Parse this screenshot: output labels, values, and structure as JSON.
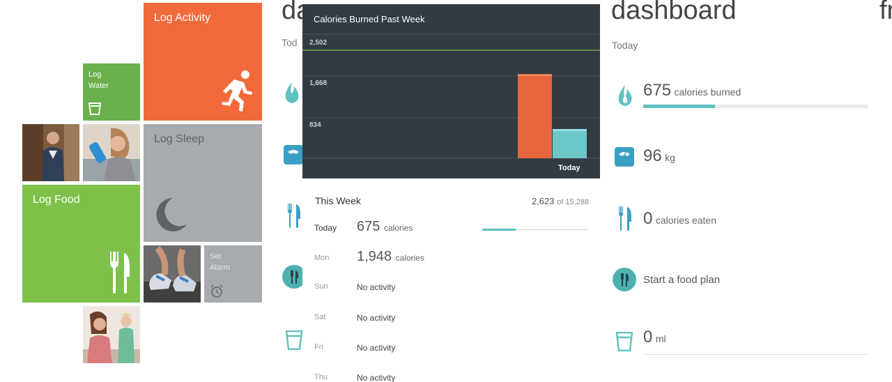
{
  "tiles": {
    "log_activity": "Log Activity",
    "log_water_line1": "Log",
    "log_water_line2": "Water",
    "log_sleep": "Log Sleep",
    "log_food": "Log Food",
    "set_alarm_line1": "Set",
    "set_alarm_line2": "Alarm"
  },
  "colors": {
    "orange": "#f26a3b",
    "green_dark": "#6ab04c",
    "green": "#7dc14b",
    "gray": "#a7abaf",
    "teal": "#5fc0c0",
    "chart_bg": "#323a42"
  },
  "middle": {
    "ghost_title": "da",
    "ghost_sub": "Tod",
    "chart": {
      "title": "Calories Burned Past Week",
      "goal_label": "2,502",
      "today_label": "Today"
    },
    "week": {
      "heading": "This Week",
      "total": "2,623",
      "total_of": "of 15,288",
      "days": [
        {
          "name": "Today",
          "value": "675",
          "unit": "calories"
        },
        {
          "name": "Mon",
          "value": "1,948",
          "unit": "calories"
        },
        {
          "name": "Sun",
          "value": "No activity"
        },
        {
          "name": "Sat",
          "value": "No activity"
        },
        {
          "name": "Fri",
          "value": "No activity"
        },
        {
          "name": "Thu",
          "value": "No activity"
        }
      ]
    }
  },
  "chart_data": {
    "type": "bar",
    "title": "Calories Burned Past Week",
    "categories": [
      "Today"
    ],
    "series": [
      {
        "values": [
          1948
        ]
      },
      {
        "values": [
          675
        ]
      }
    ],
    "yticks": [
      "2,502",
      "1,668",
      "834"
    ],
    "ylim": [
      0,
      2502
    ],
    "goal": 2502,
    "xlabel": "",
    "ylabel": "",
    "grid": true
  },
  "dashboard": {
    "title": "dashboard",
    "subtitle": "Today",
    "calories_burned": {
      "value": "675",
      "unit": "calories burned",
      "progress": 0.32
    },
    "weight": {
      "value": "96",
      "unit": "kg"
    },
    "calories_eaten": {
      "value": "0",
      "unit": "calories eaten"
    },
    "food_plan": "Start a food plan",
    "water": {
      "value": "0",
      "unit": "ml"
    }
  },
  "next_panel_title": "fr"
}
